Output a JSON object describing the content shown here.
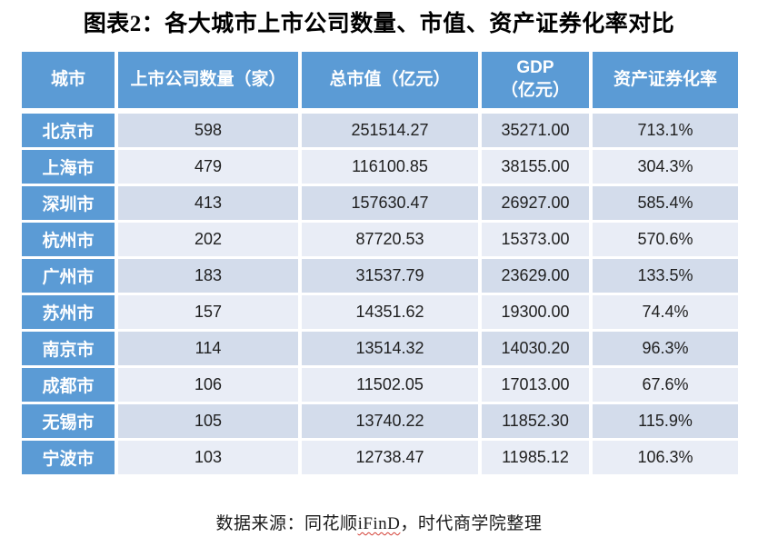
{
  "title": "图表2：各大城市上市公司数量、市值、资产证券化率对比",
  "colors": {
    "header_blue": "#5B9BD5",
    "band_dark": "#D3DCEB",
    "band_light": "#E9EDF6",
    "header_text": "#FFFFFF",
    "body_text": "#1F1F1F",
    "spellcheck_red": "#D23C32"
  },
  "table": {
    "headers": [
      "城市",
      "上市公司数量（家）",
      "总市值（亿元）",
      "GDP\n（亿元）",
      "资产证券化率"
    ],
    "rows": [
      {
        "city": "北京市",
        "companies": "598",
        "market_cap": "251514.27",
        "gdp": "35271.00",
        "securitization": "713.1%"
      },
      {
        "city": "上海市",
        "companies": "479",
        "market_cap": "116100.85",
        "gdp": "38155.00",
        "securitization": "304.3%"
      },
      {
        "city": "深圳市",
        "companies": "413",
        "market_cap": "157630.47",
        "gdp": "26927.00",
        "securitization": "585.4%"
      },
      {
        "city": "杭州市",
        "companies": "202",
        "market_cap": "87720.53",
        "gdp": "15373.00",
        "securitization": "570.6%"
      },
      {
        "city": "广州市",
        "companies": "183",
        "market_cap": "31537.79",
        "gdp": "23629.00",
        "securitization": "133.5%"
      },
      {
        "city": "苏州市",
        "companies": "157",
        "market_cap": "14351.62",
        "gdp": "19300.00",
        "securitization": "74.4%"
      },
      {
        "city": "南京市",
        "companies": "114",
        "market_cap": "13514.32",
        "gdp": "14030.20",
        "securitization": "96.3%"
      },
      {
        "city": "成都市",
        "companies": "106",
        "market_cap": "11502.05",
        "gdp": "17013.00",
        "securitization": "67.6%"
      },
      {
        "city": "无锡市",
        "companies": "105",
        "market_cap": "13740.22",
        "gdp": "11852.30",
        "securitization": "115.9%"
      },
      {
        "city": "宁波市",
        "companies": "103",
        "market_cap": "12738.47",
        "gdp": "11985.12",
        "securitization": "106.3%"
      }
    ]
  },
  "footer": {
    "source_prefix": "数据来源：同花顺",
    "source_brand": "iFinD",
    "source_suffix": "，时代商学院整理"
  },
  "chart_data": {
    "type": "table",
    "title": "图表2：各大城市上市公司数量、市值、资产证券化率对比",
    "columns": [
      "城市",
      "上市公司数量（家）",
      "总市值（亿元）",
      "GDP（亿元）",
      "资产证券化率"
    ],
    "rows": [
      [
        "北京市",
        598,
        251514.27,
        35271.0,
        "713.1%"
      ],
      [
        "上海市",
        479,
        116100.85,
        38155.0,
        "304.3%"
      ],
      [
        "深圳市",
        413,
        157630.47,
        26927.0,
        "585.4%"
      ],
      [
        "杭州市",
        202,
        87720.53,
        15373.0,
        "570.6%"
      ],
      [
        "广州市",
        183,
        31537.79,
        23629.0,
        "133.5%"
      ],
      [
        "苏州市",
        157,
        14351.62,
        19300.0,
        "74.4%"
      ],
      [
        "南京市",
        114,
        13514.32,
        14030.2,
        "96.3%"
      ],
      [
        "成都市",
        106,
        11502.05,
        17013.0,
        "67.6%"
      ],
      [
        "无锡市",
        105,
        13740.22,
        11852.3,
        "115.9%"
      ],
      [
        "宁波市",
        103,
        12738.47,
        11985.12,
        "106.3%"
      ]
    ],
    "source": "数据来源：同花顺iFinD，时代商学院整理",
    "banded_rows": true,
    "header_fill": "#5B9BD5"
  }
}
